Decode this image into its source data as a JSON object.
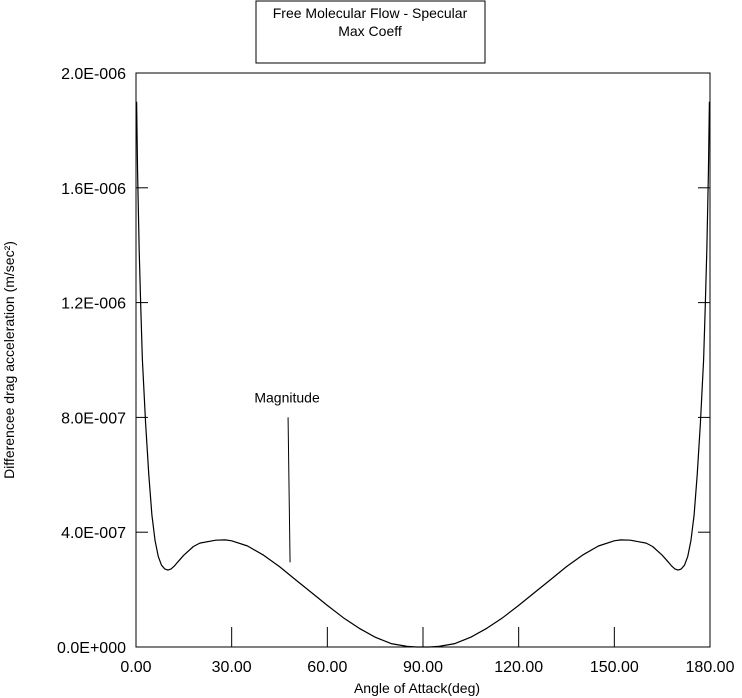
{
  "chart_data": {
    "type": "line",
    "title": "Free Molecular Flow - Specular",
    "subtitle": "Max Coeff",
    "xlabel": "Angle of Attack(deg)",
    "ylabel": "Differencee drag acceleration (m/sec²)",
    "xlim": [
      0,
      180
    ],
    "ylim": [
      0,
      2e-06
    ],
    "x_ticks": [
      0,
      30,
      60,
      90,
      120,
      150,
      180
    ],
    "x_tick_labels": [
      "0.00",
      "30.00",
      "60.00",
      "90.00",
      "120.00",
      "150.00",
      "180.00"
    ],
    "y_ticks": [
      0,
      4e-07,
      8e-07,
      1.2e-06,
      1.6e-06,
      2e-06
    ],
    "y_tick_labels": [
      "0.0E+000",
      "4.0E-007",
      "8.0E-007",
      "1.2E-006",
      "1.6E-006",
      "2.0E-006"
    ],
    "grid": false,
    "annotation": {
      "text": "Magnitude",
      "x": 48,
      "y": 8.7e-07
    },
    "series": [
      {
        "name": "Magnitude",
        "x": [
          0.2,
          0.5,
          1,
          1.5,
          2,
          3,
          4,
          5,
          6,
          7,
          8,
          9,
          10,
          11,
          12,
          13,
          15,
          18,
          20,
          25,
          28,
          30,
          35,
          40,
          45,
          50,
          55,
          60,
          65,
          70,
          75,
          80,
          85,
          88,
          90,
          92,
          95,
          100,
          105,
          110,
          115,
          120,
          125,
          130,
          135,
          140,
          145,
          150,
          152,
          155,
          160,
          162,
          165,
          167,
          168,
          169,
          170,
          171,
          172,
          173,
          174,
          175,
          176,
          177,
          178,
          178.5,
          179,
          179.5,
          179.8
        ],
        "y": [
          1.9e-06,
          1.65e-06,
          1.38e-06,
          1.18e-06,
          1e-06,
          7.8e-07,
          6e-07,
          4.6e-07,
          3.7e-07,
          3.15e-07,
          2.85e-07,
          2.72e-07,
          2.68e-07,
          2.72e-07,
          2.82e-07,
          2.95e-07,
          3.2e-07,
          3.5e-07,
          3.62e-07,
          3.72e-07,
          3.73e-07,
          3.7e-07,
          3.52e-07,
          3.2e-07,
          2.8e-07,
          2.35e-07,
          1.9e-07,
          1.45e-07,
          1.02e-07,
          6.5e-08,
          3.4e-08,
          1.2e-08,
          2e-09,
          0,
          0,
          0,
          2e-09,
          1.2e-08,
          3.4e-08,
          6.5e-08,
          1.02e-07,
          1.45e-07,
          1.9e-07,
          2.35e-07,
          2.8e-07,
          3.2e-07,
          3.52e-07,
          3.7e-07,
          3.73e-07,
          3.72e-07,
          3.62e-07,
          3.5e-07,
          3.2e-07,
          2.95e-07,
          2.82e-07,
          2.72e-07,
          2.68e-07,
          2.72e-07,
          2.85e-07,
          3.15e-07,
          3.7e-07,
          4.6e-07,
          6e-07,
          7.8e-07,
          1e-06,
          1.18e-06,
          1.38e-06,
          1.65e-06,
          1.9e-06
        ]
      }
    ]
  }
}
